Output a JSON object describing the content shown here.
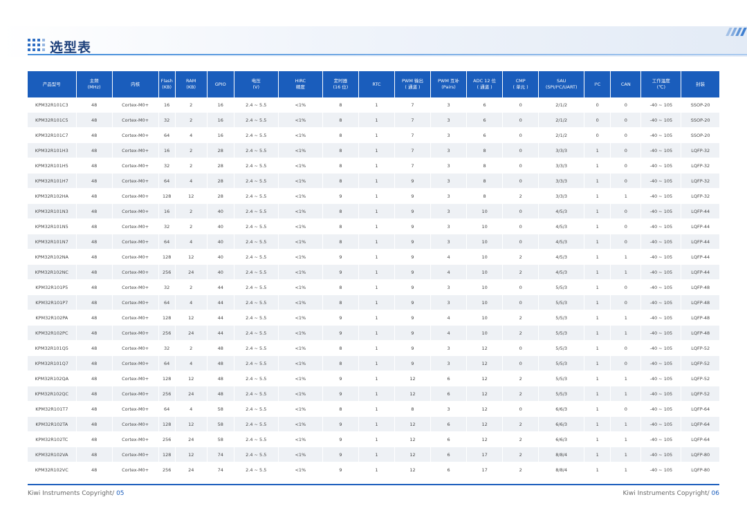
{
  "header": {
    "title": "选型表"
  },
  "colors": {
    "accent": "#1a5dbc",
    "title": "#1c3f7a",
    "row_alt": "#eef1f5"
  },
  "icons": {
    "title_marker": "dot-grid-icon",
    "corner_marker": "slash-stripes-icon"
  },
  "table": {
    "columns": [
      "产品型号",
      "主频\n(MHz)",
      "内核",
      "Flash\n(KB)",
      "RAM\n(KB)",
      "GPIO",
      "电压\n(V)",
      "HIRC\n精度",
      "定时器\n(16 位)",
      "RTC",
      "PWM 输出\n( 通道 )",
      "PWM 互补\n(Pairs)",
      "ADC 12 位\n( 通道 )",
      "CMP\n( 单元 )",
      "SAU\n(SPI/I²C/UART)",
      "I²C",
      "CAN",
      "工作温度\n(℃)",
      "封装"
    ],
    "rows": [
      [
        "KPM32R101C3",
        "48",
        "Cortex-M0+",
        "16",
        "2",
        "16",
        "2.4 ~ 5.5",
        "<1%",
        "8",
        "1",
        "7",
        "3",
        "6",
        "0",
        "2/1/2",
        "0",
        "0",
        "-40 ~ 105",
        "SSOP-20"
      ],
      [
        "KPM32R101C5",
        "48",
        "Cortex-M0+",
        "32",
        "2",
        "16",
        "2.4 ~ 5.5",
        "<1%",
        "8",
        "1",
        "7",
        "3",
        "6",
        "0",
        "2/1/2",
        "0",
        "0",
        "-40 ~ 105",
        "SSOP-20"
      ],
      [
        "KPM32R101C7",
        "48",
        "Cortex-M0+",
        "64",
        "4",
        "16",
        "2.4 ~ 5.5",
        "<1%",
        "8",
        "1",
        "7",
        "3",
        "6",
        "0",
        "2/1/2",
        "0",
        "0",
        "-40 ~ 105",
        "SSOP-20"
      ],
      [
        "KPM32R101H3",
        "48",
        "Cortex-M0+",
        "16",
        "2",
        "28",
        "2.4 ~ 5.5",
        "<1%",
        "8",
        "1",
        "7",
        "3",
        "8",
        "0",
        "3/3/3",
        "1",
        "0",
        "-40 ~ 105",
        "LQFP-32"
      ],
      [
        "KPM32R101H5",
        "48",
        "Cortex-M0+",
        "32",
        "2",
        "28",
        "2.4 ~ 5.5",
        "<1%",
        "8",
        "1",
        "7",
        "3",
        "8",
        "0",
        "3/3/3",
        "1",
        "0",
        "-40 ~ 105",
        "LQFP-32"
      ],
      [
        "KPM32R101H7",
        "48",
        "Cortex-M0+",
        "64",
        "4",
        "28",
        "2.4 ~ 5.5",
        "<1%",
        "8",
        "1",
        "9",
        "3",
        "8",
        "0",
        "3/3/3",
        "1",
        "0",
        "-40 ~ 105",
        "LQFP-32"
      ],
      [
        "KPM32R102HA",
        "48",
        "Cortex-M0+",
        "128",
        "12",
        "28",
        "2.4 ~ 5.5",
        "<1%",
        "9",
        "1",
        "9",
        "3",
        "8",
        "2",
        "3/3/3",
        "1",
        "1",
        "-40 ~ 105",
        "LQFP-32"
      ],
      [
        "KPM32R101N3",
        "48",
        "Cortex-M0+",
        "16",
        "2",
        "40",
        "2.4 ~ 5.5",
        "<1%",
        "8",
        "1",
        "9",
        "3",
        "10",
        "0",
        "4/5/3",
        "1",
        "0",
        "-40 ~ 105",
        "LQFP-44"
      ],
      [
        "KPM32R101N5",
        "48",
        "Cortex-M0+",
        "32",
        "2",
        "40",
        "2.4 ~ 5.5",
        "<1%",
        "8",
        "1",
        "9",
        "3",
        "10",
        "0",
        "4/5/3",
        "1",
        "0",
        "-40 ~ 105",
        "LQFP-44"
      ],
      [
        "KPM32R101N7",
        "48",
        "Cortex-M0+",
        "64",
        "4",
        "40",
        "2.4 ~ 5.5",
        "<1%",
        "8",
        "1",
        "9",
        "3",
        "10",
        "0",
        "4/5/3",
        "1",
        "0",
        "-40 ~ 105",
        "LQFP-44"
      ],
      [
        "KPM32R102NA",
        "48",
        "Cortex-M0+",
        "128",
        "12",
        "40",
        "2.4 ~ 5.5",
        "<1%",
        "9",
        "1",
        "9",
        "4",
        "10",
        "2",
        "4/5/3",
        "1",
        "1",
        "-40 ~ 105",
        "LQFP-44"
      ],
      [
        "KPM32R102NC",
        "48",
        "Cortex-M0+",
        "256",
        "24",
        "40",
        "2.4 ~ 5.5",
        "<1%",
        "9",
        "1",
        "9",
        "4",
        "10",
        "2",
        "4/5/3",
        "1",
        "1",
        "-40 ~ 105",
        "LQFP-44"
      ],
      [
        "KPM32R101P5",
        "48",
        "Cortex-M0+",
        "32",
        "2",
        "44",
        "2.4 ~ 5.5",
        "<1%",
        "8",
        "1",
        "9",
        "3",
        "10",
        "0",
        "5/5/3",
        "1",
        "0",
        "-40 ~ 105",
        "LQFP-48"
      ],
      [
        "KPM32R101P7",
        "48",
        "Cortex-M0+",
        "64",
        "4",
        "44",
        "2.4 ~ 5.5",
        "<1%",
        "8",
        "1",
        "9",
        "3",
        "10",
        "0",
        "5/5/3",
        "1",
        "0",
        "-40 ~ 105",
        "LQFP-48"
      ],
      [
        "KPM32R102PA",
        "48",
        "Cortex-M0+",
        "128",
        "12",
        "44",
        "2.4 ~ 5.5",
        "<1%",
        "9",
        "1",
        "9",
        "4",
        "10",
        "2",
        "5/5/3",
        "1",
        "1",
        "-40 ~ 105",
        "LQFP-48"
      ],
      [
        "KPM32R102PC",
        "48",
        "Cortex-M0+",
        "256",
        "24",
        "44",
        "2.4 ~ 5.5",
        "<1%",
        "9",
        "1",
        "9",
        "4",
        "10",
        "2",
        "5/5/3",
        "1",
        "1",
        "-40 ~ 105",
        "LQFP-48"
      ],
      [
        "KPM32R101Q5",
        "48",
        "Cortex-M0+",
        "32",
        "2",
        "48",
        "2.4 ~ 5.5",
        "<1%",
        "8",
        "1",
        "9",
        "3",
        "12",
        "0",
        "5/5/3",
        "1",
        "0",
        "-40 ~ 105",
        "LQFP-52"
      ],
      [
        "KPM32R101Q7",
        "48",
        "Cortex-M0+",
        "64",
        "4",
        "48",
        "2.4 ~ 5.5",
        "<1%",
        "8",
        "1",
        "9",
        "3",
        "12",
        "0",
        "5/5/3",
        "1",
        "0",
        "-40 ~ 105",
        "LQFP-52"
      ],
      [
        "KPM32R102QA",
        "48",
        "Cortex-M0+",
        "128",
        "12",
        "48",
        "2.4 ~ 5.5",
        "<1%",
        "9",
        "1",
        "12",
        "6",
        "12",
        "2",
        "5/5/3",
        "1",
        "1",
        "-40 ~ 105",
        "LQFP-52"
      ],
      [
        "KPM32R102QC",
        "48",
        "Cortex-M0+",
        "256",
        "24",
        "48",
        "2.4 ~ 5.5",
        "<1%",
        "9",
        "1",
        "12",
        "6",
        "12",
        "2",
        "5/5/3",
        "1",
        "1",
        "-40 ~ 105",
        "LQFP-52"
      ],
      [
        "KPM32R101T7",
        "48",
        "Cortex-M0+",
        "64",
        "4",
        "58",
        "2.4 ~ 5.5",
        "<1%",
        "8",
        "1",
        "8",
        "3",
        "12",
        "0",
        "6/6/3",
        "1",
        "0",
        "-40 ~ 105",
        "LQFP-64"
      ],
      [
        "KPM32R102TA",
        "48",
        "Cortex-M0+",
        "128",
        "12",
        "58",
        "2.4 ~ 5.5",
        "<1%",
        "9",
        "1",
        "12",
        "6",
        "12",
        "2",
        "6/6/3",
        "1",
        "1",
        "-40 ~ 105",
        "LQFP-64"
      ],
      [
        "KPM32R102TC",
        "48",
        "Cortex-M0+",
        "256",
        "24",
        "58",
        "2.4 ~ 5.5",
        "<1%",
        "9",
        "1",
        "12",
        "6",
        "12",
        "2",
        "6/6/3",
        "1",
        "1",
        "-40 ~ 105",
        "LQFP-64"
      ],
      [
        "KPM32R102VA",
        "48",
        "Cortex-M0+",
        "128",
        "12",
        "74",
        "2.4 ~ 5.5",
        "<1%",
        "9",
        "1",
        "12",
        "6",
        "17",
        "2",
        "8/8/4",
        "1",
        "1",
        "-40 ~ 105",
        "LQFP-80"
      ],
      [
        "KPM32R102VC",
        "48",
        "Cortex-M0+",
        "256",
        "24",
        "74",
        "2.4 ~ 5.5",
        "<1%",
        "9",
        "1",
        "12",
        "6",
        "17",
        "2",
        "8/8/4",
        "1",
        "1",
        "-40 ~ 105",
        "LQFP-80"
      ]
    ]
  },
  "footer": {
    "left_text": "Kiwi Instruments Copyright/ ",
    "left_page": "05",
    "right_text": "Kiwi Instruments Copyright/ ",
    "right_page": "06"
  }
}
